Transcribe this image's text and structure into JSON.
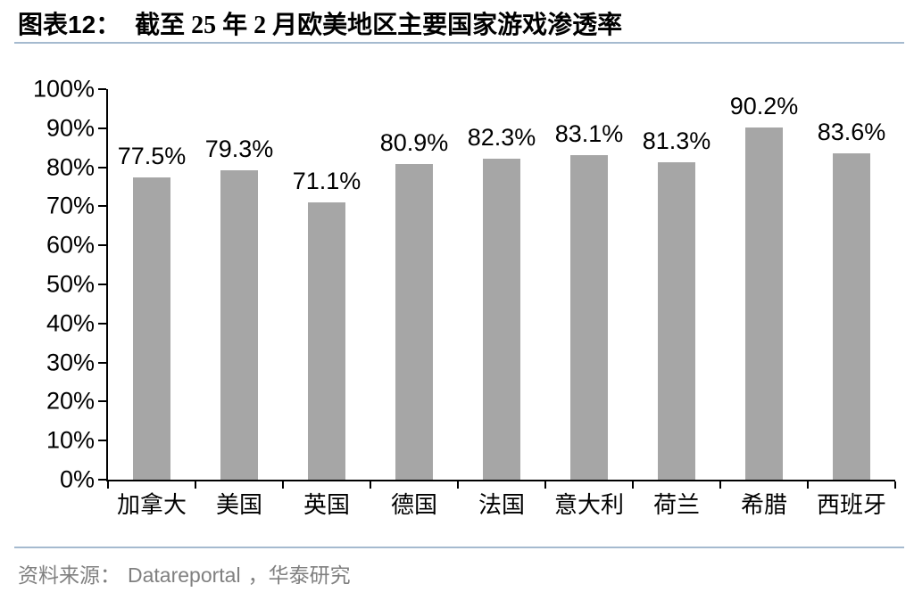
{
  "header": {
    "title_prefix": "图表12：",
    "title_text": "截至 25 年 2 月欧美地区主要国家游戏渗透率"
  },
  "footer": {
    "source_label": "资料来源：",
    "source_name": "Datareportal",
    "source_suffix": "，华泰研究"
  },
  "colors": {
    "bar": "#a6a6a6",
    "axis": "#000000",
    "divider": "#a5bacf",
    "footer_text": "#808080"
  },
  "chart_data": {
    "type": "bar",
    "title": "截至 25 年 2 月欧美地区主要国家游戏渗透率",
    "categories": [
      "加拿大",
      "美国",
      "英国",
      "德国",
      "法国",
      "意大利",
      "荷兰",
      "希腊",
      "西班牙"
    ],
    "values": [
      77.5,
      79.3,
      71.1,
      80.9,
      82.3,
      83.1,
      81.3,
      90.2,
      83.6
    ],
    "data_labels": [
      "77.5%",
      "79.3%",
      "71.1%",
      "80.9%",
      "82.3%",
      "83.1%",
      "81.3%",
      "90.2%",
      "83.6%"
    ],
    "xlabel": "",
    "ylabel": "",
    "ylim": [
      0,
      100
    ],
    "ytick_step": 10,
    "ytick_labels": [
      "0%",
      "10%",
      "20%",
      "30%",
      "40%",
      "50%",
      "60%",
      "70%",
      "80%",
      "90%",
      "100%"
    ],
    "grid": false,
    "legend": "none",
    "bar_color": "#a6a6a6"
  }
}
